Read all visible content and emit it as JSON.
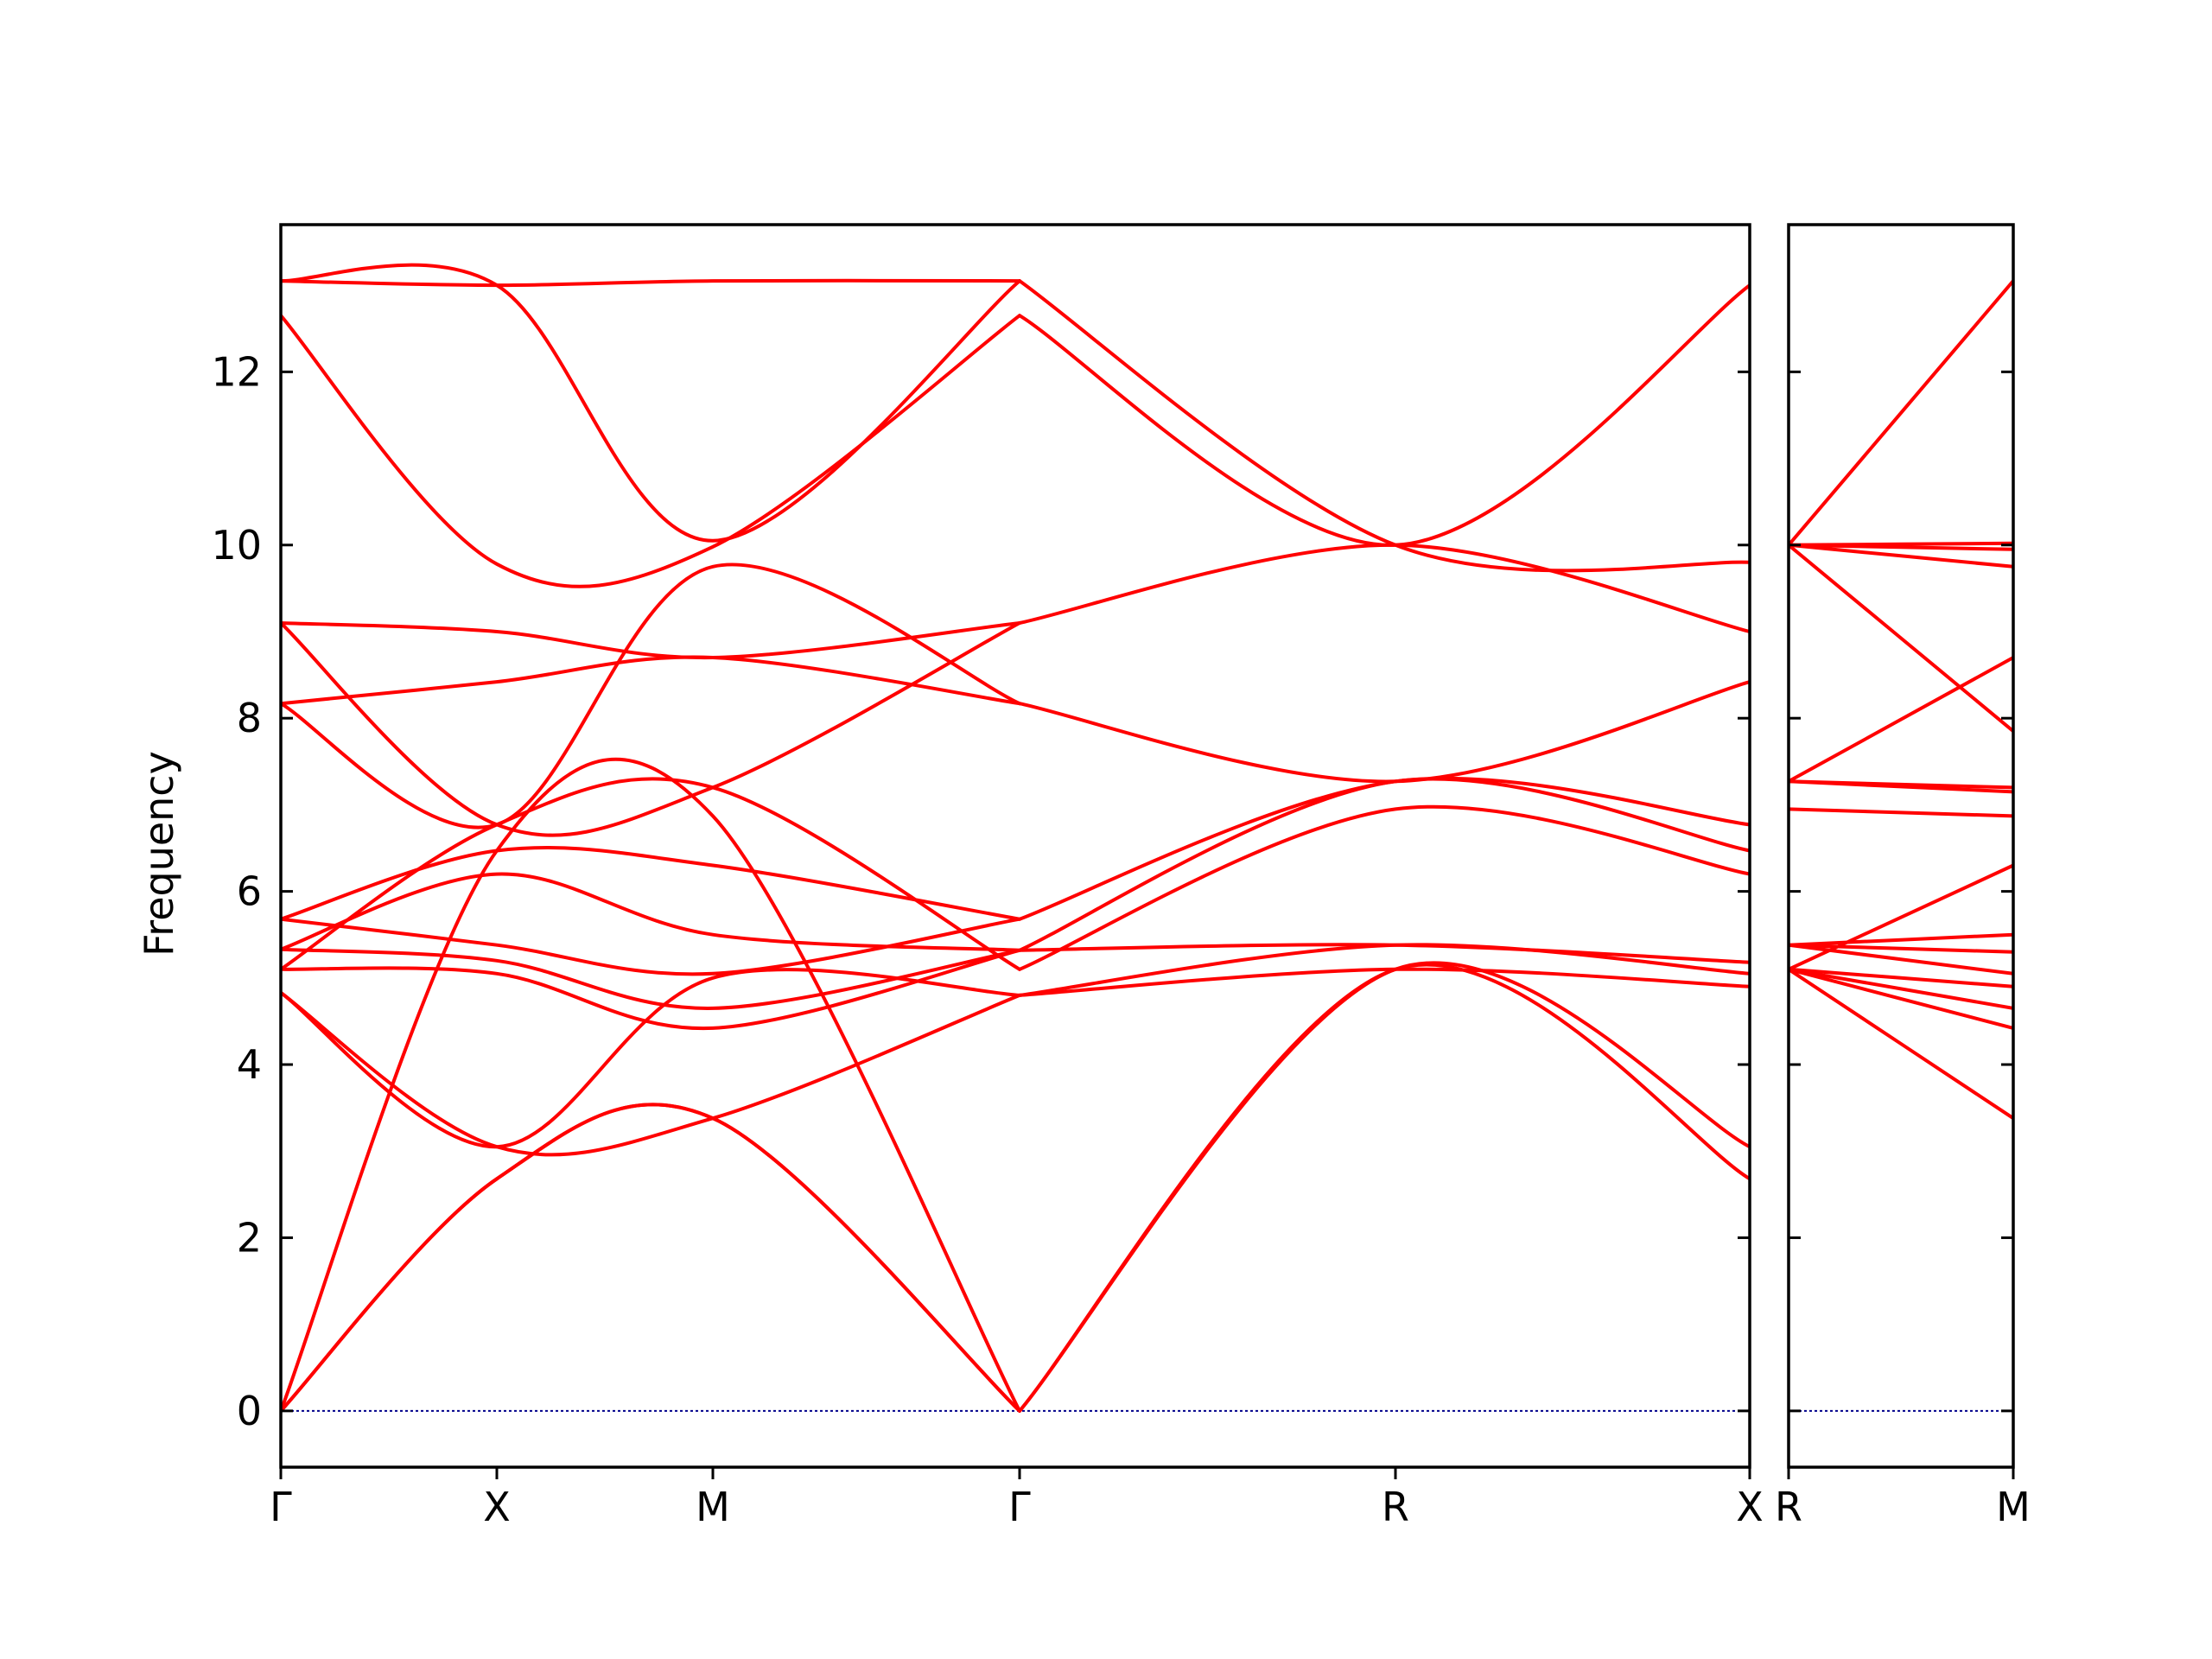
{
  "chart_data": {
    "type": "line",
    "title": "",
    "ylabel": "Frequency",
    "xlabel": "",
    "ylim": [
      -0.65,
      13.7
    ],
    "yticks": [
      0,
      2,
      4,
      6,
      8,
      10,
      12
    ],
    "grid": false,
    "legend": "none",
    "line_color": "#ff0000",
    "zero_line_color": "#00008b",
    "panels": [
      {
        "x_range": [
          0,
          3.4
        ],
        "x_tick_positions": [
          0,
          0.5,
          1.0,
          1.71,
          2.58,
          3.4
        ],
        "x_tick_labels": [
          "Γ",
          "X",
          "M",
          "Γ",
          "R",
          "X"
        ],
        "bands": [
          [
            [
              0,
              0
            ],
            [
              0.5,
              2.68
            ],
            [
              1.0,
              3.38
            ],
            [
              1.71,
              0
            ]
          ],
          [
            [
              0,
              0
            ],
            [
              0.5,
              2.68
            ],
            [
              1.0,
              3.38
            ],
            [
              1.71,
              0
            ]
          ],
          [
            [
              0,
              0
            ],
            [
              0.5,
              6.47
            ],
            [
              1.0,
              6.87
            ],
            [
              1.71,
              0
            ]
          ],
          [
            [
              0,
              4.83
            ],
            [
              0.5,
              3.05
            ],
            [
              1.0,
              3.38
            ],
            [
              1.71,
              4.8
            ]
          ],
          [
            [
              0,
              4.83
            ],
            [
              0.5,
              3.05
            ],
            [
              1.0,
              5.0
            ],
            [
              1.71,
              4.8
            ]
          ],
          [
            [
              0,
              5.1
            ],
            [
              0.5,
              6.77
            ],
            [
              1.0,
              7.2
            ],
            [
              1.71,
              5.1
            ]
          ],
          [
            [
              0,
              5.1
            ],
            [
              0.5,
              5.05
            ],
            [
              1.0,
              4.42
            ],
            [
              1.71,
              5.32
            ]
          ],
          [
            [
              0,
              5.33
            ],
            [
              0.5,
              5.2
            ],
            [
              1.0,
              4.65
            ],
            [
              1.71,
              5.32
            ]
          ],
          [
            [
              0,
              5.33
            ],
            [
              0.5,
              6.2
            ],
            [
              1.0,
              5.5
            ],
            [
              1.71,
              5.32
            ]
          ],
          [
            [
              0,
              5.68
            ],
            [
              0.5,
              6.47
            ],
            [
              1.0,
              6.3
            ],
            [
              1.71,
              5.68
            ]
          ],
          [
            [
              0,
              5.68
            ],
            [
              0.5,
              5.38
            ],
            [
              1.0,
              5.05
            ],
            [
              1.71,
              5.68
            ]
          ],
          [
            [
              0,
              8.17
            ],
            [
              0.5,
              8.42
            ],
            [
              1.0,
              8.7
            ],
            [
              1.71,
              8.17
            ]
          ],
          [
            [
              0,
              8.17
            ],
            [
              0.5,
              6.77
            ],
            [
              1.0,
              9.75
            ],
            [
              1.71,
              8.17
            ]
          ],
          [
            [
              0,
              9.1
            ],
            [
              0.5,
              9.0
            ],
            [
              1.0,
              8.7
            ],
            [
              1.71,
              9.1
            ]
          ],
          [
            [
              0,
              9.1
            ],
            [
              0.5,
              6.77
            ],
            [
              1.0,
              7.2
            ],
            [
              1.71,
              9.1
            ]
          ],
          [
            [
              0,
              12.65
            ],
            [
              0.5,
              9.78
            ],
            [
              1.0,
              9.98
            ],
            [
              1.71,
              12.65
            ]
          ],
          [
            [
              0,
              13.05
            ],
            [
              0.5,
              13.0
            ],
            [
              1.0,
              13.05
            ],
            [
              1.71,
              13.05
            ]
          ],
          [
            [
              0,
              13.05
            ],
            [
              0.5,
              13.0
            ],
            [
              1.0,
              10.05
            ],
            [
              1.71,
              13.05
            ]
          ],
          [
            [
              1.71,
              0
            ],
            [
              2.58,
              5.1
            ],
            [
              3.4,
              2.68
            ]
          ],
          [
            [
              1.71,
              0
            ],
            [
              2.58,
              5.1
            ],
            [
              3.4,
              3.05
            ]
          ],
          [
            [
              1.71,
              4.8
            ],
            [
              2.58,
              5.1
            ],
            [
              3.4,
              4.9
            ]
          ],
          [
            [
              1.71,
              4.8
            ],
            [
              2.58,
              5.38
            ],
            [
              3.4,
              5.05
            ]
          ],
          [
            [
              1.71,
              5.1
            ],
            [
              2.58,
              6.95
            ],
            [
              3.4,
              6.2
            ]
          ],
          [
            [
              1.71,
              5.32
            ],
            [
              2.58,
              5.38
            ],
            [
              3.4,
              5.18
            ]
          ],
          [
            [
              1.71,
              5.32
            ],
            [
              2.58,
              7.27
            ],
            [
              3.4,
              6.47
            ]
          ],
          [
            [
              1.71,
              5.68
            ],
            [
              2.58,
              7.27
            ],
            [
              3.4,
              6.77
            ]
          ],
          [
            [
              1.71,
              8.17
            ],
            [
              2.58,
              7.27
            ],
            [
              3.4,
              8.42
            ]
          ],
          [
            [
              1.71,
              9.1
            ],
            [
              2.58,
              10.0
            ],
            [
              3.4,
              9.0
            ]
          ],
          [
            [
              1.71,
              12.65
            ],
            [
              2.58,
              10.0
            ],
            [
              3.4,
              13.0
            ]
          ],
          [
            [
              1.71,
              13.05
            ],
            [
              2.58,
              10.0
            ],
            [
              3.4,
              9.8
            ]
          ]
        ]
      },
      {
        "x_range": [
          0,
          0.5
        ],
        "x_tick_positions": [
          0,
          0.5
        ],
        "x_tick_labels": [
          "R",
          "M"
        ],
        "bands": [
          [
            [
              0,
              5.1
            ],
            [
              0.5,
              3.38
            ]
          ],
          [
            [
              0,
              5.1
            ],
            [
              0.5,
              4.42
            ]
          ],
          [
            [
              0,
              5.1
            ],
            [
              0.5,
              4.65
            ]
          ],
          [
            [
              0,
              5.1
            ],
            [
              0.5,
              4.9
            ]
          ],
          [
            [
              0,
              5.38
            ],
            [
              0.5,
              5.05
            ]
          ],
          [
            [
              0,
              5.38
            ],
            [
              0.5,
              5.3
            ]
          ],
          [
            [
              0,
              5.38
            ],
            [
              0.5,
              5.5
            ]
          ],
          [
            [
              0,
              5.1
            ],
            [
              0.5,
              6.3
            ]
          ],
          [
            [
              0,
              6.95
            ],
            [
              0.5,
              6.87
            ]
          ],
          [
            [
              0,
              7.27
            ],
            [
              0.5,
              7.15
            ]
          ],
          [
            [
              0,
              7.27
            ],
            [
              0.5,
              7.2
            ]
          ],
          [
            [
              0,
              7.27
            ],
            [
              0.5,
              8.7
            ]
          ],
          [
            [
              0,
              10.0
            ],
            [
              0.5,
              7.85
            ]
          ],
          [
            [
              0,
              10.0
            ],
            [
              0.5,
              9.75
            ]
          ],
          [
            [
              0,
              10.0
            ],
            [
              0.5,
              9.95
            ]
          ],
          [
            [
              0,
              10.0
            ],
            [
              0.5,
              10.02
            ]
          ],
          [
            [
              0,
              10.0
            ],
            [
              0.5,
              13.05
            ]
          ]
        ]
      }
    ]
  }
}
